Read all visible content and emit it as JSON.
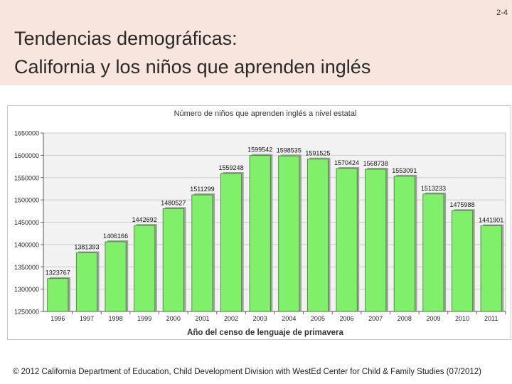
{
  "slide": {
    "number": "2-4"
  },
  "title": {
    "line1": "Tendencias demográficas:",
    "line2": "California y los niños que aprenden inglés"
  },
  "footer": {
    "credit": "© 2012 California Department of Education, Child Development Division with WestEd Center for Child & Family Studies (07/2012)"
  },
  "colors": {
    "bar_fill": "#80f06a",
    "bar_stroke": "#3a7a2a",
    "bar_shadow": "#a0a0a0",
    "plot_bg": "#f2f2f2",
    "gridline": "#cccccc"
  },
  "chart_data": {
    "type": "bar",
    "title": "Número de niños que aprenden inglés a nivel estatal",
    "xlabel": "Año del censo de lenguaje de primavera",
    "ylabel": "",
    "categories": [
      "1996",
      "1997",
      "1998",
      "1999",
      "2000",
      "2001",
      "2002",
      "2003",
      "2004",
      "2005",
      "2006",
      "2007",
      "2008",
      "2009",
      "2010",
      "2011"
    ],
    "values": [
      1323767,
      1381393,
      1406166,
      1442692,
      1480527,
      1511299,
      1559248,
      1599542,
      1598535,
      1591525,
      1570424,
      1568738,
      1553091,
      1513233,
      1475988,
      1441901
    ],
    "value_labels": [
      "1323767",
      "1381393",
      "1406166",
      "1442692",
      "1480527",
      "1511299",
      "1559248",
      "1599542",
      "1598535",
      "1591525",
      "1570424",
      "1568738",
      "1553091",
      "1513233",
      "1475988",
      "1441901"
    ],
    "ylim": [
      1250000,
      1650000
    ],
    "yticks": [
      1250000,
      1300000,
      1350000,
      1400000,
      1450000,
      1500000,
      1550000,
      1600000,
      1650000
    ],
    "ytick_labels": [
      "1250000",
      "1300000",
      "1350000",
      "1400000",
      "1450000",
      "1500000",
      "1550000",
      "1600000",
      "1650000"
    ],
    "grid": true
  }
}
